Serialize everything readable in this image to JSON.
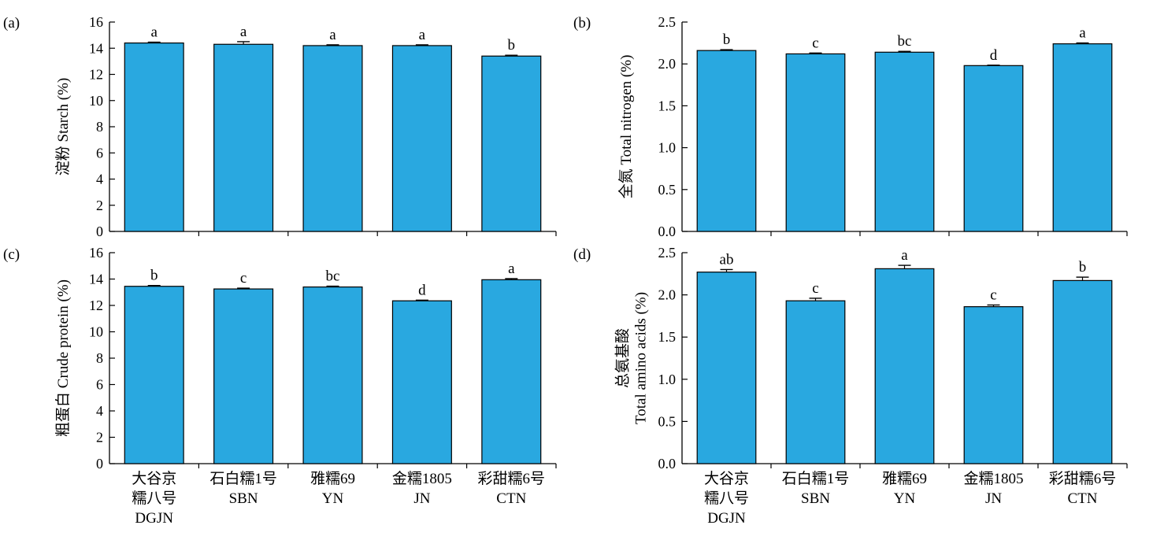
{
  "colors": {
    "bar": "#29a8e0",
    "stroke": "#000000"
  },
  "chart_data": [
    {
      "panel_label": "(a)",
      "type": "bar",
      "ylabel": "淀粉 Starch (%)",
      "ylim": [
        0,
        16
      ],
      "yticks": [
        "0",
        "2",
        "4",
        "6",
        "8",
        "10",
        "12",
        "14",
        "16"
      ],
      "categories": [
        "大谷京糯八号 DGJN",
        "石白糯1号 SBN",
        "雅糯69 YN",
        "金糯1805 JN",
        "彩甜糯6号 CTN"
      ],
      "values": [
        14.4,
        14.3,
        14.2,
        14.2,
        13.4
      ],
      "errors": [
        0.06,
        0.2,
        0.06,
        0.06,
        0.06
      ],
      "significance": [
        "a",
        "a",
        "a",
        "a",
        "b"
      ],
      "show_xlabels": false
    },
    {
      "panel_label": "(b)",
      "type": "bar",
      "ylabel": "全氮 Total nitrogen (%)",
      "ylim": [
        0,
        2.5
      ],
      "yticks": [
        "0.0",
        "0.5",
        "1.0",
        "1.5",
        "2.0",
        "2.5"
      ],
      "categories": [
        "大谷京糯八号 DGJN",
        "石白糯1号 SBN",
        "雅糯69 YN",
        "金糯1805 JN",
        "彩甜糯6号 CTN"
      ],
      "values": [
        2.16,
        2.12,
        2.14,
        1.98,
        2.24
      ],
      "errors": [
        0.01,
        0.01,
        0.01,
        0.005,
        0.01
      ],
      "significance": [
        "b",
        "c",
        "bc",
        "d",
        "a"
      ],
      "show_xlabels": false
    },
    {
      "panel_label": "(c)",
      "type": "bar",
      "ylabel": "粗蛋白 Crude protein (%)",
      "ylim": [
        0,
        16
      ],
      "yticks": [
        "0",
        "2",
        "4",
        "6",
        "8",
        "10",
        "12",
        "14",
        "16"
      ],
      "categories": [
        "大谷京糯八号 DGJN",
        "石白糯1号 SBN",
        "雅糯69 YN",
        "金糯1805 JN",
        "彩甜糯6号 CTN"
      ],
      "values": [
        13.45,
        13.25,
        13.4,
        12.35,
        13.95
      ],
      "errors": [
        0.06,
        0.06,
        0.06,
        0.05,
        0.08
      ],
      "significance": [
        "b",
        "c",
        "bc",
        "d",
        "a"
      ],
      "show_xlabels": true
    },
    {
      "panel_label": "(d)",
      "type": "bar",
      "ylabel": "总氨基酸 Total amino acids (%)",
      "ylabel_lines": [
        "总氨基酸",
        "Total amino acids (%)"
      ],
      "ylim": [
        0,
        2.5
      ],
      "yticks": [
        "0.0",
        "0.5",
        "1.0",
        "1.5",
        "2.0",
        "2.5"
      ],
      "categories": [
        "大谷京糯八号 DGJN",
        "石白糯1号 SBN",
        "雅糯69 YN",
        "金糯1805 JN",
        "彩甜糯6号 CTN"
      ],
      "values": [
        2.27,
        1.93,
        2.31,
        1.86,
        2.17
      ],
      "errors": [
        0.03,
        0.03,
        0.04,
        0.02,
        0.04
      ],
      "significance": [
        "ab",
        "c",
        "a",
        "c",
        "b"
      ],
      "show_xlabels": true
    }
  ],
  "xlabels": [
    [
      "大谷京",
      "糯八号",
      "DGJN"
    ],
    [
      "石白糯1号",
      "SBN"
    ],
    [
      "雅糯69",
      "YN"
    ],
    [
      "金糯1805",
      "JN"
    ],
    [
      "彩甜糯6号",
      "CTN"
    ]
  ]
}
